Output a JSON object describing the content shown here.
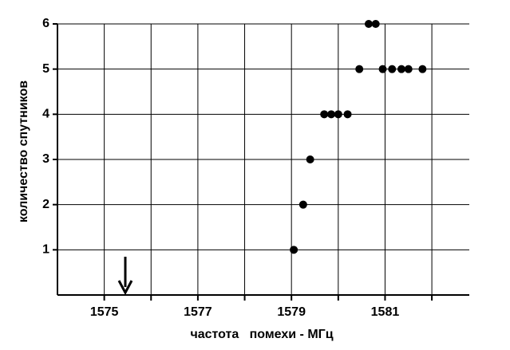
{
  "chart_data": {
    "type": "scatter",
    "x_label": "частота   помехи - МГц",
    "y_label": "количество  спутников",
    "x": [
      1579.05,
      1579.25,
      1579.4,
      1579.7,
      1579.85,
      1580.0,
      1580.2,
      1580.45,
      1580.65,
      1580.8,
      1580.95,
      1581.15,
      1581.35,
      1581.5,
      1581.8
    ],
    "values": [
      1,
      2,
      3,
      4,
      4,
      4,
      4,
      5,
      6,
      6,
      5,
      5,
      5,
      5,
      5
    ],
    "color": "#000000",
    "xlim": [
      1574,
      1582.8
    ],
    "ylim": [
      0,
      6
    ],
    "xticks": [
      1575,
      1577,
      1579,
      1581
    ],
    "xgrid_minor": [
      1576,
      1578,
      1580,
      1582
    ],
    "yticks": [
      1,
      2,
      3,
      4,
      5,
      6
    ],
    "grid": true
  }
}
